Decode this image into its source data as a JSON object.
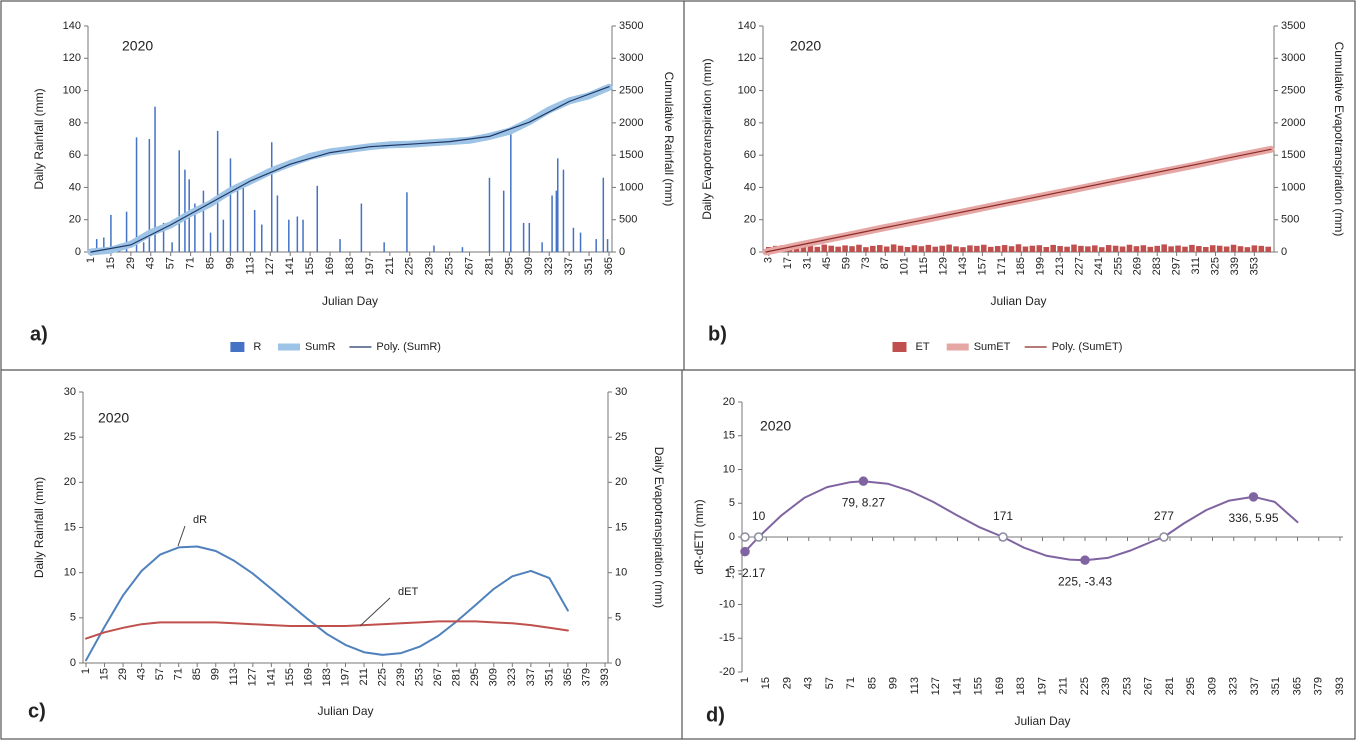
{
  "chart_data": [
    {
      "type": "bar",
      "panel_label": "a)",
      "annotation": "2020",
      "xlabel": "Julian Day",
      "ylabel": "Daily Rainfall (mm)",
      "y2label": "Cumulative Rainfall (mm)",
      "xlim": [
        1,
        365
      ],
      "xticks": [
        1,
        15,
        29,
        43,
        57,
        71,
        85,
        99,
        113,
        127,
        141,
        155,
        169,
        183,
        197,
        211,
        225,
        239,
        253,
        267,
        281,
        295,
        309,
        323,
        337,
        351,
        365
      ],
      "ylim": [
        0,
        140
      ],
      "yticks": [
        0,
        20,
        40,
        60,
        80,
        100,
        120,
        140
      ],
      "y2lim": [
        0,
        3500
      ],
      "y2ticks": [
        0,
        500,
        1000,
        1500,
        2000,
        2500,
        3000,
        3500
      ],
      "grid": false,
      "legend": "bottom",
      "series": [
        {
          "name": "R",
          "type": "bar",
          "color": "#4472c4",
          "x": [
            5,
            10,
            15,
            21,
            26,
            33,
            38,
            42,
            46,
            52,
            58,
            63,
            67,
            70,
            74,
            80,
            85,
            90,
            94,
            99,
            104,
            108,
            116,
            121,
            128,
            132,
            140,
            146,
            150,
            160,
            176,
            191,
            207,
            223,
            242,
            262,
            281,
            291,
            296,
            305,
            309,
            318,
            325,
            328,
            329,
            333,
            340,
            345,
            356,
            361,
            364
          ],
          "values": [
            8,
            9,
            23,
            5,
            25,
            71,
            6,
            70,
            90,
            18,
            6,
            63,
            51,
            45,
            30,
            38,
            12,
            75,
            20,
            58,
            40,
            42,
            26,
            17,
            68,
            35,
            20,
            22,
            20,
            41,
            8,
            30,
            6,
            37,
            4,
            3,
            46,
            38,
            73,
            18,
            18,
            6,
            35,
            38,
            58,
            51,
            15,
            12,
            8,
            46,
            8
          ]
        },
        {
          "name": "SumR",
          "type": "line",
          "axis": "y2",
          "color": "#9dc3e6",
          "linewidth": 7,
          "x": [
            1,
            15,
            29,
            43,
            57,
            71,
            85,
            99,
            113,
            127,
            141,
            155,
            169,
            183,
            197,
            211,
            225,
            239,
            253,
            267,
            281,
            295,
            309,
            323,
            337,
            351,
            365
          ],
          "values": [
            0,
            30,
            120,
            300,
            420,
            600,
            750,
            950,
            1100,
            1250,
            1370,
            1480,
            1550,
            1590,
            1630,
            1660,
            1670,
            1690,
            1710,
            1730,
            1790,
            1870,
            2020,
            2200,
            2340,
            2420,
            2550
          ]
        },
        {
          "name": "Poly. (SumR)",
          "type": "line",
          "axis": "y2",
          "color": "#1f3864",
          "linewidth": 1.2,
          "x": [
            1,
            29,
            57,
            85,
            113,
            141,
            169,
            197,
            225,
            253,
            281,
            309,
            337,
            365
          ],
          "values": [
            0,
            110,
            420,
            760,
            1100,
            1360,
            1540,
            1630,
            1670,
            1710,
            1790,
            2010,
            2330,
            2560
          ]
        }
      ]
    },
    {
      "type": "bar",
      "panel_label": "b)",
      "annotation": "2020",
      "xlabel": "Julian Day",
      "ylabel": "Daily Evapotranspiration (mm)",
      "y2label": "Cumulative Evapotranspiration (mm)",
      "xlim": [
        1,
        365
      ],
      "xticks": [
        3,
        17,
        31,
        45,
        59,
        73,
        87,
        101,
        115,
        129,
        143,
        157,
        171,
        185,
        199,
        213,
        227,
        241,
        255,
        269,
        283,
        297,
        311,
        325,
        339,
        353
      ],
      "ylim": [
        0,
        140
      ],
      "yticks": [
        0,
        20,
        40,
        60,
        80,
        100,
        120,
        140
      ],
      "y2lim": [
        0,
        3500
      ],
      "y2ticks": [
        0,
        500,
        1000,
        1500,
        2000,
        2500,
        3000,
        3500
      ],
      "grid": false,
      "legend": "bottom",
      "series": [
        {
          "name": "ET",
          "type": "bar",
          "color": "#c0504d",
          "x": [
            3,
            8,
            13,
            18,
            23,
            28,
            33,
            38,
            43,
            48,
            53,
            58,
            63,
            68,
            73,
            78,
            83,
            88,
            93,
            98,
            103,
            108,
            113,
            118,
            123,
            128,
            133,
            138,
            143,
            148,
            153,
            158,
            163,
            168,
            173,
            178,
            183,
            188,
            193,
            198,
            203,
            208,
            213,
            218,
            223,
            228,
            233,
            238,
            243,
            248,
            253,
            258,
            263,
            268,
            273,
            278,
            283,
            288,
            293,
            298,
            303,
            308,
            313,
            318,
            323,
            328,
            333,
            338,
            343,
            348,
            353,
            358,
            363
          ],
          "values": [
            3.1,
            3.8,
            4.2,
            3.5,
            2.9,
            4.4,
            3.7,
            3.2,
            4.6,
            3.9,
            3.3,
            4.1,
            3.6,
            4.5,
            3.0,
            3.8,
            4.3,
            3.4,
            4.7,
            3.9,
            3.1,
            4.2,
            3.6,
            4.4,
            3.3,
            3.9,
            4.6,
            3.5,
            3.0,
            4.1,
            3.8,
            4.5,
            3.2,
            3.7,
            4.3,
            3.6,
            4.8,
            3.4,
            3.9,
            4.2,
            3.1,
            4.4,
            3.7,
            3.3,
            4.6,
            3.8,
            3.5,
            4.1,
            3.0,
            4.3,
            3.9,
            3.4,
            4.5,
            3.6,
            4.2,
            3.2,
            3.8,
            4.7,
            3.5,
            4.0,
            3.3,
            4.4,
            3.7,
            3.1,
            4.2,
            3.9,
            3.4,
            4.5,
            3.6,
            3.0,
            4.1,
            3.8,
            3.3
          ]
        },
        {
          "name": "SumET",
          "type": "line",
          "axis": "y2",
          "color": "#e6a6a4",
          "linewidth": 7,
          "x": [
            1,
            29,
            57,
            85,
            113,
            141,
            169,
            197,
            225,
            253,
            281,
            309,
            337,
            365
          ],
          "values": [
            0,
            125,
            245,
            370,
            490,
            610,
            735,
            855,
            975,
            1100,
            1220,
            1340,
            1470,
            1590
          ]
        },
        {
          "name": "Poly. (SumET)",
          "type": "line",
          "axis": "y2",
          "color": "#8b2a26",
          "linewidth": 1.2,
          "x": [
            1,
            92,
            183,
            274,
            365
          ],
          "values": [
            0,
            400,
            795,
            1195,
            1590
          ]
        }
      ]
    },
    {
      "type": "line",
      "panel_label": "c)",
      "annotation": "2020",
      "xlabel": "Julian Day",
      "ylabel": "Daily Rainfall (mm)",
      "y2label": "Daily Evapotranspiration (mm)",
      "xlim": [
        1,
        393
      ],
      "xticks": [
        1,
        15,
        29,
        43,
        57,
        71,
        85,
        99,
        113,
        127,
        141,
        155,
        169,
        183,
        197,
        211,
        225,
        239,
        253,
        267,
        281,
        295,
        309,
        323,
        337,
        351,
        365,
        379,
        393
      ],
      "ylim": [
        0,
        30
      ],
      "yticks": [
        0,
        5,
        10,
        15,
        20,
        25,
        30
      ],
      "y2lim": [
        0,
        30
      ],
      "y2ticks": [
        0,
        5,
        10,
        15,
        20,
        25,
        30
      ],
      "grid": false,
      "series": [
        {
          "name": "dR",
          "type": "line",
          "color": "#4f81bd",
          "linewidth": 2,
          "x": [
            1,
            15,
            29,
            43,
            57,
            71,
            85,
            99,
            113,
            127,
            141,
            155,
            169,
            183,
            197,
            211,
            225,
            239,
            253,
            267,
            281,
            295,
            309,
            323,
            337,
            351,
            365
          ],
          "values": [
            0.3,
            4.0,
            7.5,
            10.2,
            12.0,
            12.8,
            12.9,
            12.4,
            11.3,
            9.9,
            8.2,
            6.5,
            4.8,
            3.2,
            2.0,
            1.2,
            0.9,
            1.1,
            1.8,
            3.0,
            4.6,
            6.4,
            8.2,
            9.6,
            10.2,
            9.4,
            5.8
          ]
        },
        {
          "name": "dET",
          "type": "line",
          "color": "#c0504d",
          "linewidth": 2,
          "x": [
            1,
            15,
            29,
            43,
            57,
            71,
            85,
            99,
            113,
            127,
            141,
            155,
            169,
            183,
            197,
            211,
            225,
            239,
            253,
            267,
            281,
            295,
            309,
            323,
            337,
            351,
            365
          ],
          "values": [
            2.7,
            3.4,
            3.9,
            4.3,
            4.5,
            4.5,
            4.5,
            4.5,
            4.4,
            4.3,
            4.2,
            4.1,
            4.1,
            4.1,
            4.1,
            4.2,
            4.3,
            4.4,
            4.5,
            4.6,
            4.6,
            4.6,
            4.5,
            4.4,
            4.2,
            3.9,
            3.6
          ]
        }
      ]
    },
    {
      "type": "line",
      "panel_label": "d)",
      "annotation": "2020",
      "xlabel": "Julian Day",
      "ylabel": "dR-dETl (mm)",
      "xlim": [
        1,
        393
      ],
      "xticks": [
        1,
        15,
        29,
        43,
        57,
        71,
        85,
        99,
        113,
        127,
        141,
        155,
        169,
        183,
        197,
        211,
        225,
        239,
        253,
        267,
        281,
        295,
        309,
        323,
        337,
        351,
        365,
        379,
        393
      ],
      "ylim": [
        -20,
        20
      ],
      "yticks": [
        -20,
        -15,
        -10,
        -5,
        0,
        5,
        10,
        15,
        20
      ],
      "grid": false,
      "series": [
        {
          "type": "line",
          "color": "#8064a2",
          "linewidth": 2,
          "x": [
            1,
            10,
            25,
            40,
            55,
            70,
            79,
            95,
            110,
            125,
            140,
            155,
            171,
            185,
            200,
            215,
            225,
            240,
            255,
            270,
            277,
            290,
            305,
            320,
            336,
            350,
            365
          ],
          "values": [
            -2.17,
            0,
            3.2,
            5.8,
            7.4,
            8.1,
            8.27,
            7.9,
            6.8,
            5.2,
            3.3,
            1.5,
            0,
            -1.6,
            -2.8,
            -3.35,
            -3.43,
            -3.1,
            -2.0,
            -0.6,
            0,
            2.0,
            4.0,
            5.4,
            5.95,
            5.2,
            2.2
          ]
        }
      ],
      "points": [
        {
          "x": 1,
          "y": -2.17,
          "label": "1, -2.17",
          "filled": true
        },
        {
          "x": 1,
          "y": 0,
          "filled": false
        },
        {
          "x": 10,
          "y": 0,
          "label": "10",
          "filled": false
        },
        {
          "x": 79,
          "y": 8.27,
          "label": "79, 8.27",
          "filled": true
        },
        {
          "x": 171,
          "y": 0,
          "label": "171",
          "filled": false
        },
        {
          "x": 225,
          "y": -3.43,
          "label": "225, -3.43",
          "filled": true
        },
        {
          "x": 277,
          "y": 0,
          "label": "277",
          "filled": false
        },
        {
          "x": 336,
          "y": 5.95,
          "label": "336, 5.95",
          "filled": true
        }
      ]
    }
  ]
}
